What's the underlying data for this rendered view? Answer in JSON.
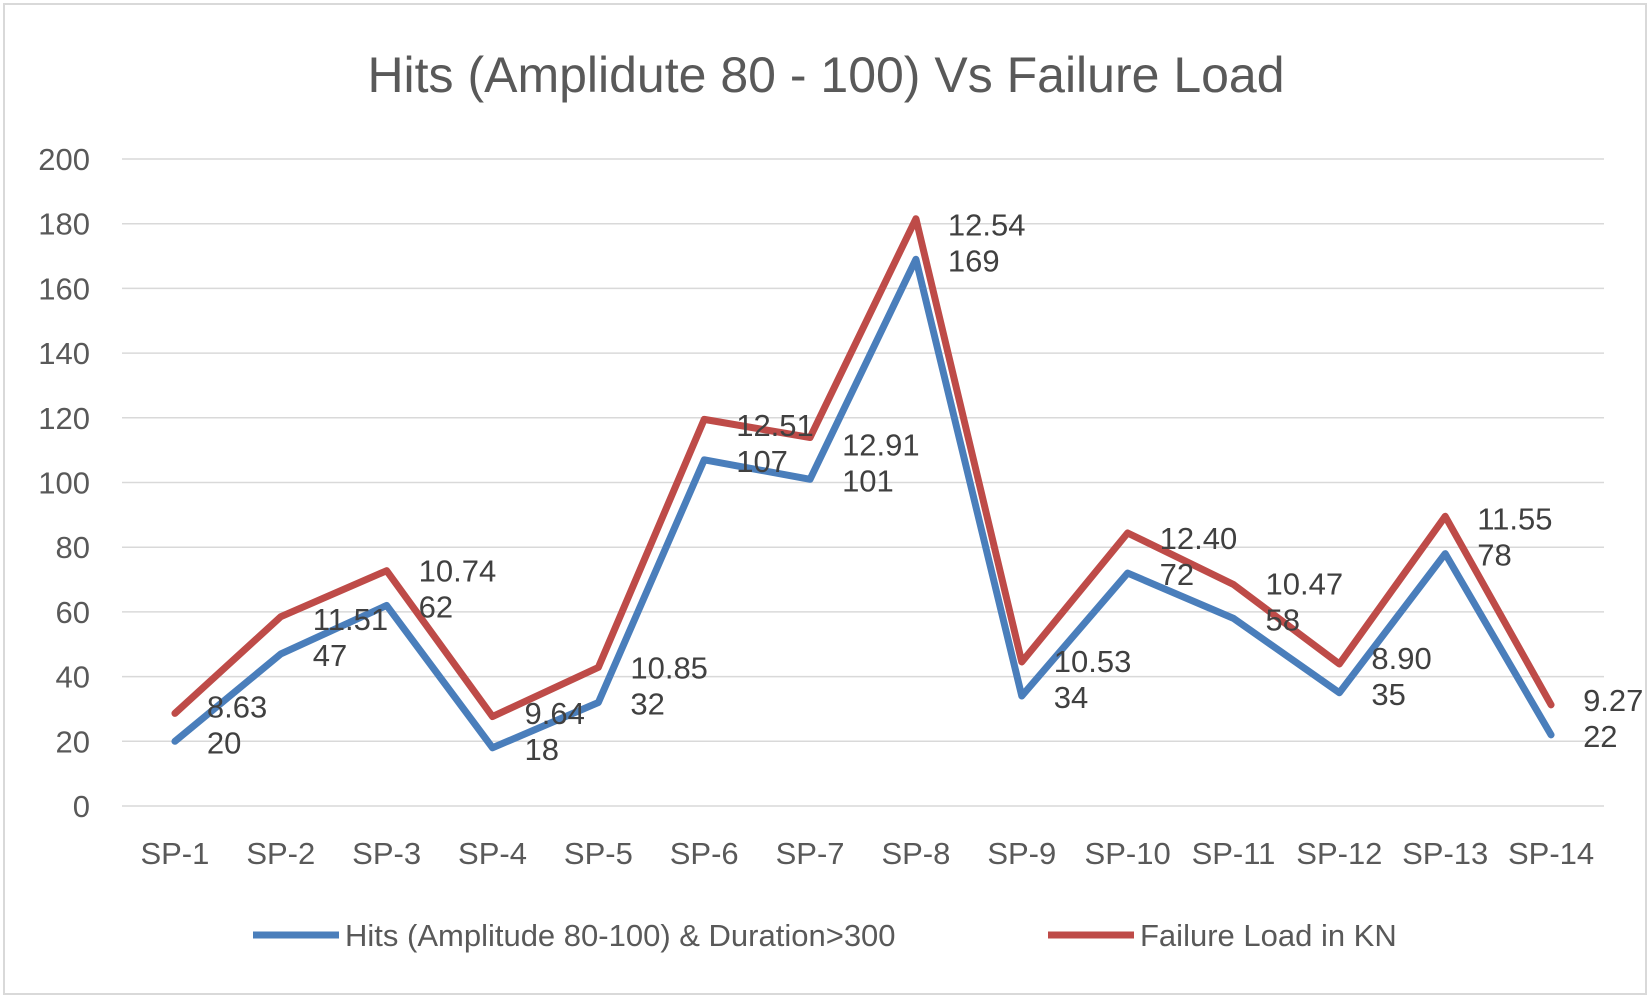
{
  "chart_data": {
    "type": "line",
    "title": "Hits (Amplidute 80 - 100) Vs Failure Load",
    "xlabel": "",
    "ylabel": "",
    "categories": [
      "SP-1",
      "SP-2",
      "SP-3",
      "SP-4",
      "SP-5",
      "SP-6",
      "SP-7",
      "SP-8",
      "SP-9",
      "SP-10",
      "SP-11",
      "SP-12",
      "SP-13",
      "SP-14"
    ],
    "ylim": [
      0,
      200
    ],
    "yticks": [
      "0",
      "20",
      "40",
      "60",
      "80",
      "100",
      "120",
      "140",
      "160",
      "180",
      "200"
    ],
    "grid": true,
    "legend_position": "bottom",
    "stacked": true,
    "series": [
      {
        "name": "Hits (Amplitude 80-100) & Duration>300",
        "color": "#4a7ebb",
        "values": [
          20,
          47,
          62,
          18,
          32,
          107,
          101,
          169,
          34,
          72,
          58,
          35,
          78,
          22
        ],
        "labels": [
          "20",
          "47",
          "62",
          "18",
          "32",
          "107",
          "101",
          "169",
          "34",
          "72",
          "58",
          "35",
          "78",
          "22"
        ]
      },
      {
        "name": "Failure Load in KN",
        "color": "#be4b48",
        "values": [
          8.63,
          11.51,
          10.74,
          9.64,
          10.85,
          12.51,
          12.91,
          12.54,
          10.53,
          12.4,
          10.47,
          8.9,
          11.55,
          9.27
        ],
        "labels": [
          "8.63",
          "11.51",
          "10.74",
          "9.64",
          "10.85",
          "12.51",
          "12.91",
          "12.54",
          "10.53",
          "12.40",
          "10.47",
          "8.90",
          "11.55",
          "9.27"
        ]
      }
    ]
  }
}
